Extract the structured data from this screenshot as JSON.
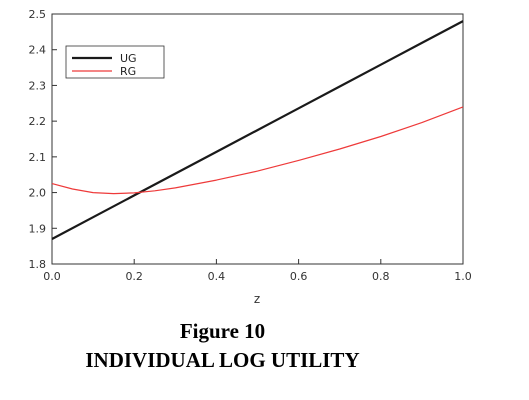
{
  "chart_data": {
    "type": "line",
    "xlabel": "z",
    "ylabel": "",
    "xlim": [
      0.0,
      1.0
    ],
    "ylim": [
      1.8,
      2.5
    ],
    "x_ticks": [
      "0.0",
      "0.2",
      "0.4",
      "0.6",
      "0.8",
      "1.0"
    ],
    "y_ticks": [
      "1.8",
      "1.9",
      "2.0",
      "2.1",
      "2.2",
      "2.3",
      "2.4",
      "2.5"
    ],
    "legend_position": "top-left",
    "grid": false,
    "series": [
      {
        "name": "UG",
        "color": "#1a1a1a",
        "x": [
          0.0,
          0.1,
          0.2,
          0.3,
          0.4,
          0.5,
          0.6,
          0.7,
          0.8,
          0.9,
          1.0
        ],
        "y": [
          1.87,
          1.931,
          1.992,
          2.053,
          2.114,
          2.175,
          2.236,
          2.297,
          2.358,
          2.419,
          2.48
        ]
      },
      {
        "name": "RG",
        "color": "#ee3a3a",
        "x": [
          0.0,
          0.05,
          0.1,
          0.15,
          0.2,
          0.25,
          0.3,
          0.4,
          0.5,
          0.6,
          0.7,
          0.8,
          0.9,
          1.0
        ],
        "y": [
          2.025,
          2.01,
          2.0,
          1.997,
          1.999,
          2.005,
          2.013,
          2.035,
          2.06,
          2.09,
          2.122,
          2.157,
          2.196,
          2.24
        ]
      }
    ]
  },
  "caption": {
    "number": "Figure 10",
    "title": "INDIVIDUAL LOG UTILITY"
  }
}
